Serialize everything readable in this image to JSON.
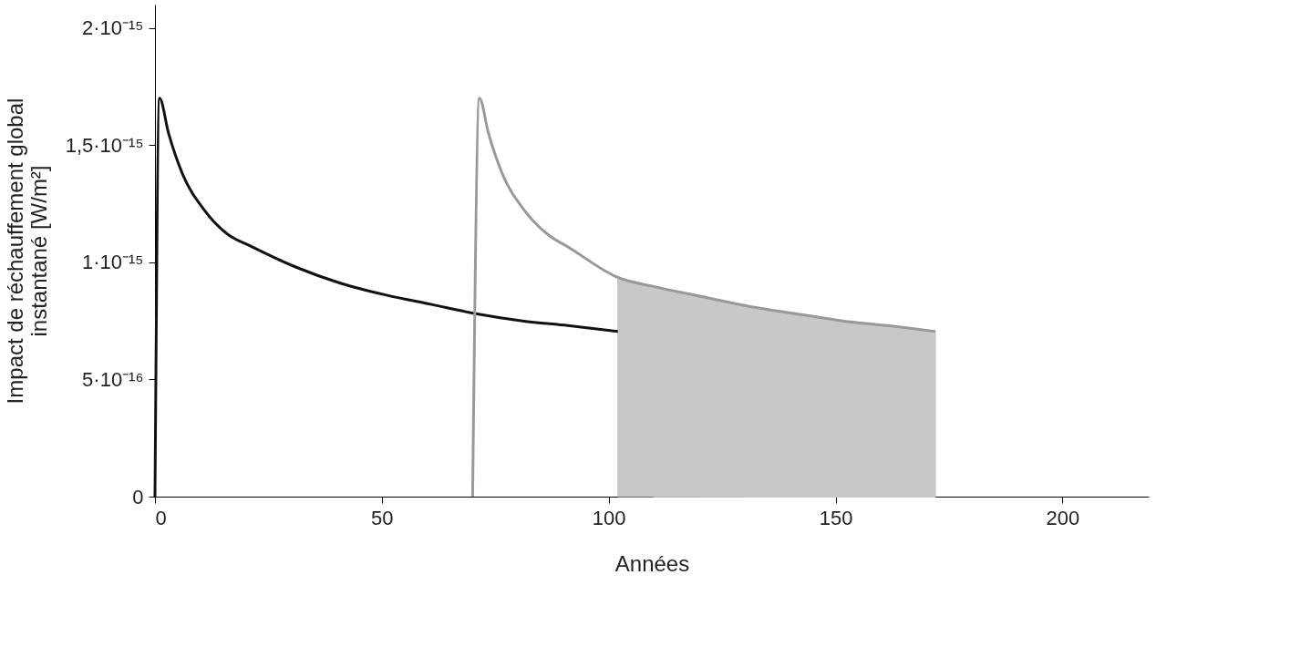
{
  "chart_data": {
    "type": "line",
    "xlabel": "Années",
    "ylabel": "Impact de réchauffement global\ninstantané [W/m²]",
    "xlim": [
      0,
      219
    ],
    "ylim": [
      0,
      2.1e-15
    ],
    "xticks": [
      0,
      50,
      100,
      150,
      200
    ],
    "yticks": [
      {
        "value": 0,
        "label": "0"
      },
      {
        "value": 5e-16,
        "label": "5·10⁻¹⁶"
      },
      {
        "value": 1e-15,
        "label": "1·10⁻¹⁵"
      },
      {
        "value": 1.5e-15,
        "label": "1,5·10⁻¹⁵"
      },
      {
        "value": 2e-15,
        "label": "2·10⁻¹⁵"
      }
    ],
    "grid": false,
    "marker": "none",
    "line_style": "solid",
    "series": [
      {
        "type": "area",
        "color": "#c8c8c8",
        "x": [
          102,
          110,
          120,
          130,
          140,
          150,
          160,
          172
        ],
        "values": [
          9.3e-16,
          8.9e-16,
          8.5e-16,
          8.1e-16,
          7.8e-16,
          7.5e-16,
          7.3e-16,
          7.05e-16
        ]
      },
      {
        "color": "#111111",
        "x": [
          0,
          1,
          3,
          6,
          11,
          16,
          21,
          31,
          41,
          51,
          61,
          71,
          81,
          91,
          102
        ],
        "values": [
          0,
          1.7e-15,
          1.55e-15,
          1.38e-15,
          1.22e-15,
          1.12e-15,
          1.07e-15,
          9.8e-16,
          9.1e-16,
          8.6e-16,
          8.2e-16,
          7.8e-16,
          7.5e-16,
          7.3e-16,
          7.05e-16
        ]
      },
      {
        "color": "#999999",
        "x": [
          70,
          71.5,
          73.5,
          76.5,
          81.5,
          86.5,
          91.5,
          101.5,
          111.5,
          121.5,
          131.5,
          141.5,
          151.5,
          161.5,
          172
        ],
        "values": [
          0,
          1.7e-15,
          1.55e-15,
          1.38e-15,
          1.22e-15,
          1.12e-15,
          1.06e-15,
          9.4e-16,
          8.9e-16,
          8.5e-16,
          8.1e-16,
          7.8e-16,
          7.5e-16,
          7.3e-16,
          7.05e-16
        ]
      }
    ]
  }
}
